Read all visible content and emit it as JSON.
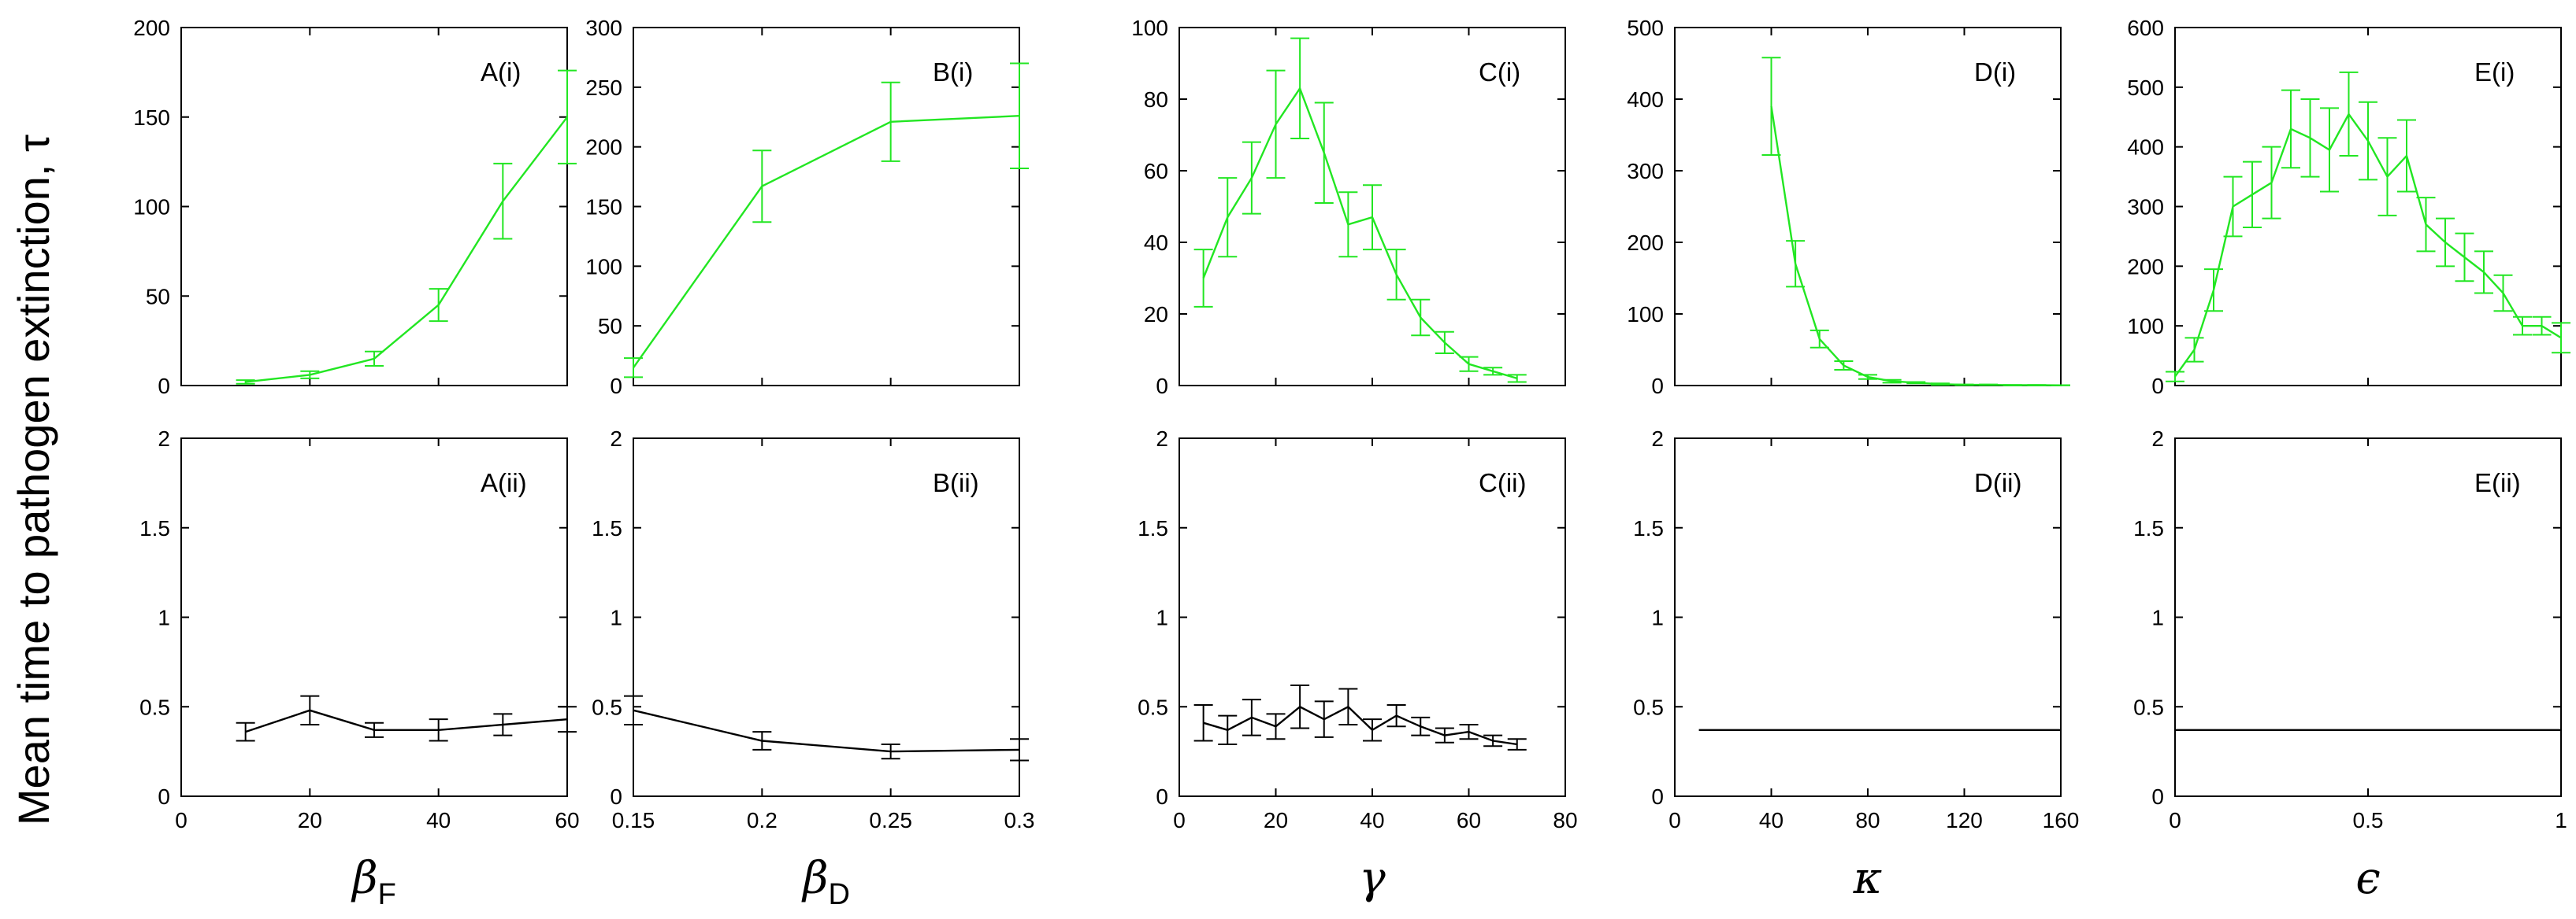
{
  "figure": {
    "ylabel": "Mean time to pathogen extinction, τ",
    "colors": {
      "top_series": "#22e622",
      "bottom_series": "#000000",
      "axes": "#000000"
    }
  },
  "chart_data": [
    {
      "type": "line",
      "id": "A-i",
      "panel_label": "A(i)",
      "title": "",
      "xlabel": "",
      "ylabel": "",
      "xlim": [
        0,
        60
      ],
      "ylim": [
        0,
        200
      ],
      "yticks": [
        0,
        50,
        100,
        150,
        200
      ],
      "xticks": [
        0,
        20,
        40,
        60
      ],
      "show_xtick_labels": false,
      "color": "#22e622",
      "series": [
        {
          "name": "A(i)",
          "x": [
            10,
            20,
            30,
            40,
            50,
            60
          ],
          "y": [
            2,
            6,
            15,
            45,
            103,
            150
          ],
          "err": [
            1,
            2,
            4,
            9,
            21,
            26
          ]
        }
      ]
    },
    {
      "type": "line",
      "id": "B-i",
      "panel_label": "B(i)",
      "title": "",
      "xlabel": "",
      "ylabel": "",
      "xlim": [
        0.15,
        0.3
      ],
      "ylim": [
        0,
        300
      ],
      "yticks": [
        0,
        50,
        100,
        150,
        200,
        250,
        300
      ],
      "xticks": [
        0.15,
        0.2,
        0.25,
        0.3
      ],
      "show_xtick_labels": false,
      "color": "#22e622",
      "series": [
        {
          "name": "B(i)",
          "x": [
            0.15,
            0.2,
            0.25,
            0.3
          ],
          "y": [
            15,
            167,
            221,
            226
          ],
          "err": [
            8,
            30,
            33,
            44
          ]
        }
      ]
    },
    {
      "type": "line",
      "id": "C-i",
      "panel_label": "C(i)",
      "title": "",
      "xlabel": "",
      "ylabel": "",
      "xlim": [
        0,
        80
      ],
      "ylim": [
        0,
        100
      ],
      "yticks": [
        0,
        20,
        40,
        60,
        80,
        100
      ],
      "xticks": [
        0,
        20,
        40,
        60,
        80
      ],
      "show_xtick_labels": false,
      "color": "#22e622",
      "series": [
        {
          "name": "C(i)",
          "x": [
            5,
            10,
            15,
            20,
            25,
            30,
            35,
            40,
            45,
            50,
            55,
            60,
            65,
            70
          ],
          "y": [
            30,
            47,
            58,
            73,
            83,
            65,
            45,
            47,
            31,
            19,
            12,
            6,
            4,
            2
          ],
          "err": [
            8,
            11,
            10,
            15,
            14,
            14,
            9,
            9,
            7,
            5,
            3,
            2,
            1,
            1
          ]
        }
      ]
    },
    {
      "type": "line",
      "id": "D-i",
      "panel_label": "D(i)",
      "title": "",
      "xlabel": "",
      "ylabel": "",
      "xlim": [
        0,
        160
      ],
      "ylim": [
        0,
        500
      ],
      "yticks": [
        0,
        100,
        200,
        300,
        400,
        500
      ],
      "xticks": [
        0,
        40,
        80,
        120,
        160
      ],
      "show_xtick_labels": false,
      "color": "#22e622",
      "series": [
        {
          "name": "D(i)",
          "x": [
            40,
            50,
            60,
            70,
            80,
            90,
            100,
            110,
            120,
            130,
            140,
            150,
            160
          ],
          "y": [
            390,
            170,
            65,
            28,
            12,
            6,
            4,
            2,
            1,
            1,
            0.5,
            0.5,
            0.3
          ],
          "err": [
            68,
            32,
            12,
            6,
            3,
            2,
            1,
            1,
            0.5,
            0.5,
            0.3,
            0.3,
            0.2
          ]
        }
      ]
    },
    {
      "type": "line",
      "id": "E-i",
      "panel_label": "E(i)",
      "title": "",
      "xlabel": "",
      "ylabel": "",
      "xlim": [
        0,
        1
      ],
      "ylim": [
        0,
        600
      ],
      "yticks": [
        0,
        100,
        200,
        300,
        400,
        500,
        600
      ],
      "xticks": [
        0,
        0.5,
        1
      ],
      "show_xtick_labels": false,
      "color": "#22e622",
      "series": [
        {
          "name": "E(i)",
          "x": [
            0,
            0.05,
            0.1,
            0.15,
            0.2,
            0.25,
            0.3,
            0.35,
            0.4,
            0.45,
            0.5,
            0.55,
            0.6,
            0.65,
            0.7,
            0.75,
            0.8,
            0.85,
            0.9,
            0.95,
            1.0
          ],
          "y": [
            15,
            60,
            160,
            300,
            320,
            340,
            430,
            415,
            395,
            455,
            410,
            350,
            385,
            270,
            240,
            215,
            190,
            155,
            100,
            100,
            80
          ],
          "err": [
            8,
            20,
            35,
            50,
            55,
            60,
            65,
            65,
            70,
            70,
            65,
            65,
            60,
            45,
            40,
            40,
            35,
            30,
            15,
            15,
            25
          ]
        }
      ]
    },
    {
      "type": "line",
      "id": "A-ii",
      "panel_label": "A(ii)",
      "title": "",
      "xlabel": "β_F",
      "ylabel": "",
      "xlim": [
        0,
        60
      ],
      "ylim": [
        0,
        2
      ],
      "yticks": [
        0,
        0.5,
        1,
        1.5,
        2
      ],
      "xticks": [
        0,
        20,
        40,
        60
      ],
      "show_xtick_labels": true,
      "color": "#000000",
      "series": [
        {
          "name": "A(ii)",
          "x": [
            10,
            20,
            30,
            40,
            50,
            60
          ],
          "y": [
            0.36,
            0.48,
            0.37,
            0.37,
            0.4,
            0.43
          ],
          "err": [
            0.05,
            0.08,
            0.04,
            0.06,
            0.06,
            0.07
          ]
        }
      ]
    },
    {
      "type": "line",
      "id": "B-ii",
      "panel_label": "B(ii)",
      "title": "",
      "xlabel": "β_D",
      "ylabel": "",
      "xlim": [
        0.15,
        0.3
      ],
      "ylim": [
        0,
        2
      ],
      "yticks": [
        0,
        0.5,
        1,
        1.5,
        2
      ],
      "xticks": [
        0.15,
        0.2,
        0.25,
        0.3
      ],
      "show_xtick_labels": true,
      "color": "#000000",
      "series": [
        {
          "name": "B(ii)",
          "x": [
            0.15,
            0.2,
            0.25,
            0.3
          ],
          "y": [
            0.48,
            0.31,
            0.25,
            0.26
          ],
          "err": [
            0.08,
            0.05,
            0.04,
            0.06
          ]
        }
      ]
    },
    {
      "type": "line",
      "id": "C-ii",
      "panel_label": "C(ii)",
      "title": "",
      "xlabel": "γ",
      "ylabel": "",
      "xlim": [
        0,
        80
      ],
      "ylim": [
        0,
        2
      ],
      "yticks": [
        0,
        0.5,
        1,
        1.5,
        2
      ],
      "xticks": [
        0,
        20,
        40,
        60,
        80
      ],
      "show_xtick_labels": true,
      "color": "#000000",
      "series": [
        {
          "name": "C(ii)",
          "x": [
            5,
            10,
            15,
            20,
            25,
            30,
            35,
            40,
            45,
            50,
            55,
            60,
            65,
            70
          ],
          "y": [
            0.41,
            0.37,
            0.44,
            0.39,
            0.5,
            0.43,
            0.5,
            0.37,
            0.45,
            0.39,
            0.34,
            0.36,
            0.31,
            0.29
          ],
          "err": [
            0.1,
            0.08,
            0.1,
            0.07,
            0.12,
            0.1,
            0.1,
            0.06,
            0.06,
            0.05,
            0.04,
            0.04,
            0.03,
            0.03
          ]
        }
      ]
    },
    {
      "type": "line",
      "id": "D-ii",
      "panel_label": "D(ii)",
      "title": "",
      "xlabel": "κ",
      "ylabel": "",
      "xlim": [
        0,
        160
      ],
      "ylim": [
        0,
        2
      ],
      "yticks": [
        0,
        0.5,
        1,
        1.5,
        2
      ],
      "xticks": [
        0,
        40,
        80,
        120,
        160
      ],
      "show_xtick_labels": true,
      "color": "#000000",
      "series": [
        {
          "name": "D(ii)",
          "x": [
            10,
            160
          ],
          "y": [
            0.37,
            0.37
          ],
          "err": []
        }
      ]
    },
    {
      "type": "line",
      "id": "E-ii",
      "panel_label": "E(ii)",
      "title": "",
      "xlabel": "ϵ",
      "ylabel": "",
      "xlim": [
        0,
        1
      ],
      "ylim": [
        0,
        2
      ],
      "yticks": [
        0,
        0.5,
        1,
        1.5,
        2
      ],
      "xticks": [
        0,
        0.5,
        1
      ],
      "show_xtick_labels": true,
      "color": "#000000",
      "series": [
        {
          "name": "E(ii)",
          "x": [
            0,
            1
          ],
          "y": [
            0.37,
            0.37
          ],
          "err": []
        }
      ]
    }
  ]
}
